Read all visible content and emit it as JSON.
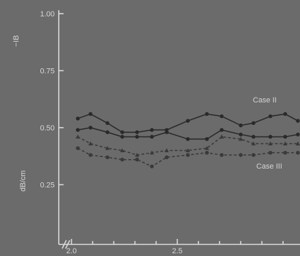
{
  "chart_data": {
    "type": "line",
    "ylabel": "dB/cm",
    "ylabel_top": "−IB",
    "ylim": [
      0.0,
      1.0
    ],
    "xlim": [
      1.94,
      3.08
    ],
    "x_ticks": [
      {
        "value": 2.0,
        "label": "2.0"
      },
      {
        "value": 2.5,
        "label": "2.5"
      }
    ],
    "x_ticks_minor": [
      2.1,
      2.2,
      2.3,
      2.4,
      2.6,
      2.7,
      2.8,
      2.9,
      3.0
    ],
    "y_ticks": [
      {
        "value": 0.25,
        "label": "0.25"
      },
      {
        "value": 0.5,
        "label": "0.50"
      },
      {
        "value": 0.75,
        "label": "0.75"
      },
      {
        "value": 1.0,
        "label": "1.00"
      }
    ],
    "series": [
      {
        "name": "Case II",
        "style": "solid",
        "marker": "circle",
        "color": "#2a2a2a",
        "points": [
          [
            2.03,
            0.54
          ],
          [
            2.09,
            0.56
          ],
          [
            2.17,
            0.52
          ],
          [
            2.24,
            0.48
          ],
          [
            2.31,
            0.48
          ],
          [
            2.38,
            0.49
          ],
          [
            2.45,
            0.49
          ],
          [
            2.55,
            0.53
          ],
          [
            2.64,
            0.56
          ],
          [
            2.71,
            0.55
          ],
          [
            2.8,
            0.51
          ],
          [
            2.86,
            0.52
          ],
          [
            2.94,
            0.55
          ],
          [
            3.01,
            0.56
          ],
          [
            3.07,
            0.53
          ]
        ]
      },
      {
        "name": "",
        "style": "solid",
        "marker": "circle",
        "color": "#2a2a2a",
        "points": [
          [
            2.03,
            0.49
          ],
          [
            2.09,
            0.5
          ],
          [
            2.17,
            0.48
          ],
          [
            2.24,
            0.46
          ],
          [
            2.31,
            0.46
          ],
          [
            2.38,
            0.46
          ],
          [
            2.45,
            0.48
          ],
          [
            2.55,
            0.45
          ],
          [
            2.64,
            0.45
          ],
          [
            2.71,
            0.49
          ],
          [
            2.8,
            0.47
          ],
          [
            2.86,
            0.46
          ],
          [
            2.94,
            0.46
          ],
          [
            3.01,
            0.46
          ],
          [
            3.07,
            0.47
          ]
        ]
      },
      {
        "name": "",
        "style": "dashed",
        "marker": "triangle",
        "color": "#3a3a3a",
        "points": [
          [
            2.03,
            0.46
          ],
          [
            2.09,
            0.43
          ],
          [
            2.17,
            0.41
          ],
          [
            2.24,
            0.4
          ],
          [
            2.31,
            0.38
          ],
          [
            2.38,
            0.39
          ],
          [
            2.45,
            0.4
          ],
          [
            2.55,
            0.4
          ],
          [
            2.64,
            0.41
          ],
          [
            2.71,
            0.46
          ],
          [
            2.8,
            0.45
          ],
          [
            2.86,
            0.43
          ],
          [
            2.94,
            0.43
          ],
          [
            3.01,
            0.43
          ],
          [
            3.07,
            0.43
          ]
        ]
      },
      {
        "name": "Case III",
        "style": "dashed",
        "marker": "circle",
        "color": "#3a3a3a",
        "points": [
          [
            2.03,
            0.41
          ],
          [
            2.09,
            0.38
          ],
          [
            2.17,
            0.37
          ],
          [
            2.24,
            0.36
          ],
          [
            2.31,
            0.36
          ],
          [
            2.38,
            0.33
          ],
          [
            2.45,
            0.37
          ],
          [
            2.55,
            0.38
          ],
          [
            2.64,
            0.39
          ],
          [
            2.71,
            0.38
          ],
          [
            2.8,
            0.38
          ],
          [
            2.86,
            0.38
          ],
          [
            2.94,
            0.39
          ],
          [
            3.01,
            0.39
          ],
          [
            3.07,
            0.39
          ]
        ]
      }
    ],
    "grid": false,
    "axis_break": true
  }
}
